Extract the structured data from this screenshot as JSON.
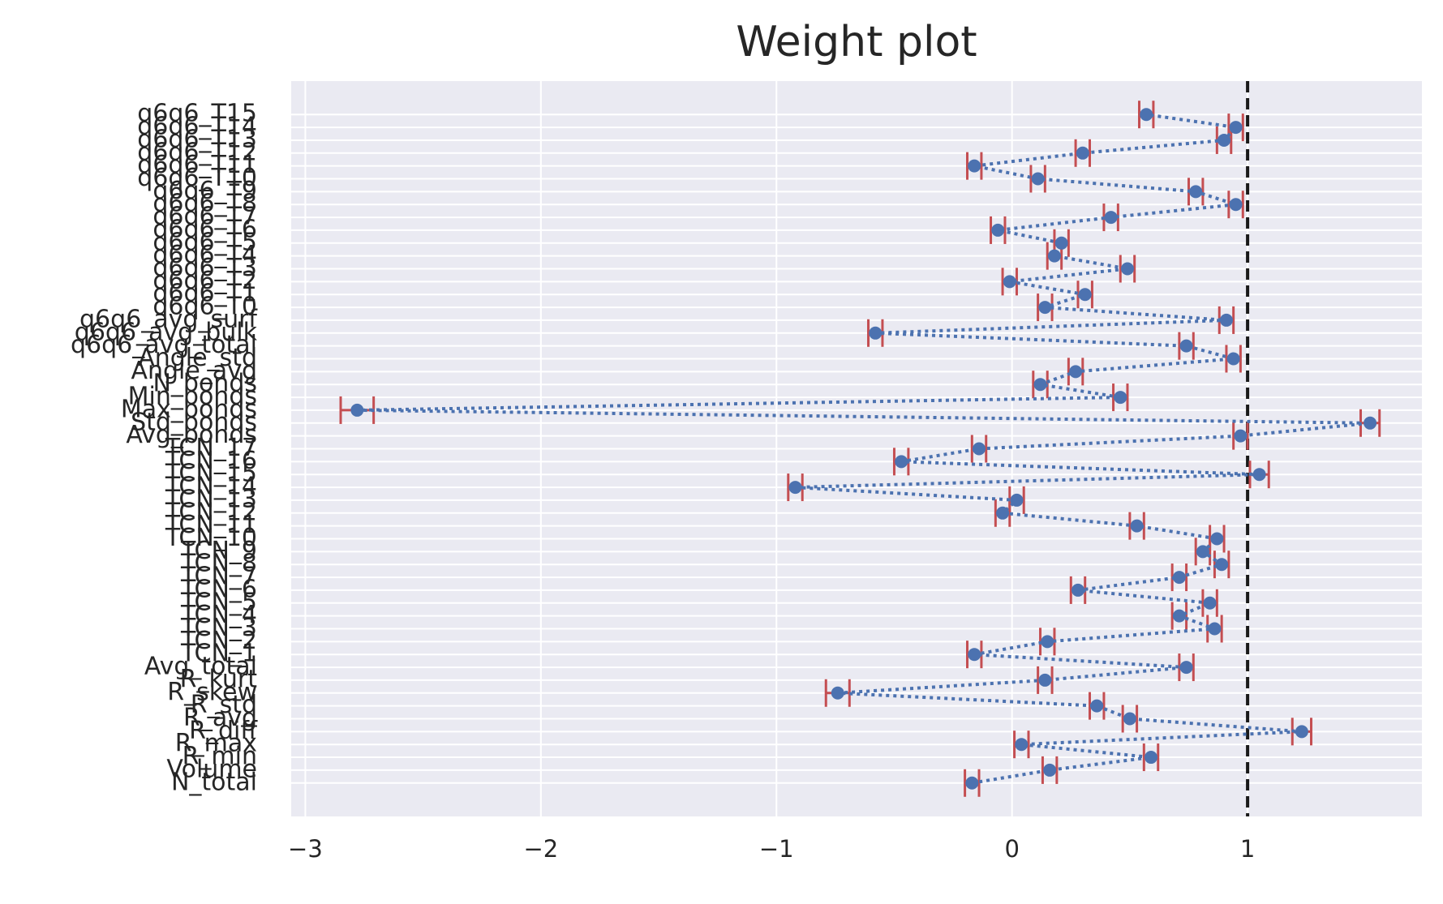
{
  "chart_data": {
    "type": "errorbar",
    "title": "Weight plot",
    "categories": [
      "N_total",
      "Volume",
      "R_min",
      "R_max",
      "R_diff",
      "R_avg",
      "R_std",
      "R_skew",
      "R_kurt",
      "Avg_total",
      "TCN_1",
      "TCN_2",
      "TCN_3",
      "TCN_4",
      "TCN_5",
      "TCN_6",
      "TCN_7",
      "TCN_8",
      "TCN_9",
      "TCN_10",
      "TCN_11",
      "TCN_12",
      "TCN_13",
      "TCN_14",
      "TCN_15",
      "TCN_16",
      "TCN_17",
      "Avg_bonds",
      "Std_bonds",
      "Max_bonds",
      "Min_bonds",
      "N_bonds",
      "Angle_avg",
      "Angle_std",
      "q6q6_avg_total",
      "q6q6_avg_bulk",
      "q6q6_avg_surf",
      "q6q6_T0",
      "q6q6_T1",
      "q6q6_T2",
      "q6q6_T3",
      "q6q6_T4",
      "q6q6_T5",
      "q6q6_T6",
      "q6q6_T7",
      "q6q6_T8",
      "q6q6_T9",
      "q6q6_T10",
      "q6q6_T11",
      "q6q6_T12",
      "q6q6_T13",
      "q6q6_T14",
      "q6q6_T15"
    ],
    "values": [
      -0.17,
      0.16,
      0.59,
      0.04,
      1.23,
      0.5,
      0.36,
      -0.74,
      0.14,
      0.74,
      -0.16,
      0.15,
      0.86,
      0.71,
      0.84,
      0.28,
      0.71,
      0.89,
      0.81,
      0.87,
      0.53,
      -0.04,
      0.02,
      -0.92,
      1.05,
      -0.47,
      -0.14,
      0.97,
      1.52,
      -2.78,
      0.46,
      0.12,
      0.27,
      0.94,
      0.74,
      -0.58,
      0.91,
      0.14,
      0.31,
      -0.01,
      0.49,
      0.18,
      0.21,
      -0.06,
      0.42,
      0.95,
      0.78,
      0.11,
      -0.16,
      0.3,
      0.9,
      0.95,
      0.57
    ],
    "errors": [
      0.03,
      0.03,
      0.03,
      0.03,
      0.04,
      0.03,
      0.03,
      0.05,
      0.03,
      0.03,
      0.03,
      0.03,
      0.03,
      0.03,
      0.03,
      0.03,
      0.03,
      0.03,
      0.03,
      0.03,
      0.03,
      0.03,
      0.03,
      0.03,
      0.04,
      0.03,
      0.03,
      0.03,
      0.04,
      0.07,
      0.03,
      0.03,
      0.03,
      0.03,
      0.03,
      0.03,
      0.03,
      0.03,
      0.03,
      0.03,
      0.03,
      0.03,
      0.03,
      0.03,
      0.03,
      0.03,
      0.03,
      0.03,
      0.03,
      0.03,
      0.03,
      0.03,
      0.03
    ],
    "color": "#4c72b0",
    "error_color": "#c44e52",
    "vline": 1,
    "vline_color": "#1a1a1a",
    "xlim": [
      -3.06,
      1.74
    ],
    "xticks": [
      {
        "value": -3,
        "label": "−3"
      },
      {
        "value": -2,
        "label": "−2"
      },
      {
        "value": -1,
        "label": "−1"
      },
      0,
      1
    ],
    "grid": true
  }
}
